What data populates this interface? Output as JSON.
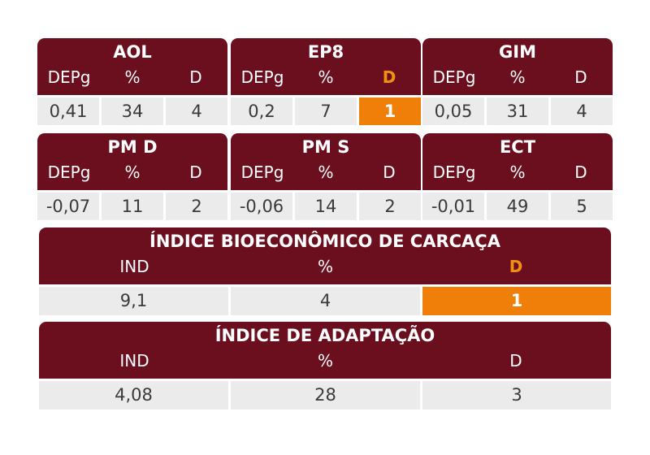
{
  "cards": [
    {
      "title": "AOL",
      "labels": [
        "DEPg",
        "%",
        "D"
      ],
      "values": [
        "0,41",
        "34",
        "4"
      ]
    },
    {
      "title": "EP8",
      "labels": [
        "DEPg",
        "%",
        "D"
      ],
      "values": [
        "0,2",
        "7",
        "1"
      ],
      "highlight": 2
    },
    {
      "title": "GIM",
      "labels": [
        "DEPg",
        "%",
        "D"
      ],
      "values": [
        "0,05",
        "31",
        "4"
      ]
    },
    {
      "title": "PM D",
      "labels": [
        "DEPg",
        "%",
        "D"
      ],
      "values": [
        "-0,07",
        "11",
        "2"
      ]
    },
    {
      "title": "PM S",
      "labels": [
        "DEPg",
        "%",
        "D"
      ],
      "values": [
        "-0,06",
        "14",
        "2"
      ]
    },
    {
      "title": "ECT",
      "labels": [
        "DEPg",
        "%",
        "D"
      ],
      "values": [
        "-0,01",
        "49",
        "5"
      ]
    }
  ],
  "bio": {
    "title": "ÍNDICE BIOECONÔMICO DE CARCAÇA",
    "labels": [
      "IND",
      "%",
      "D"
    ],
    "values": [
      "9,1",
      "4",
      "1"
    ],
    "highlight": 2
  },
  "adapt": {
    "title": "ÍNDICE DE ADAPTAÇÃO",
    "labels": [
      "IND",
      "%",
      "D"
    ],
    "values": [
      "4,08",
      "28",
      "3"
    ]
  },
  "colors": {
    "header": "#6b0f1f",
    "highlight": "#f07f09",
    "highlight_text": "#f29010",
    "cell": "#ebebeb"
  }
}
